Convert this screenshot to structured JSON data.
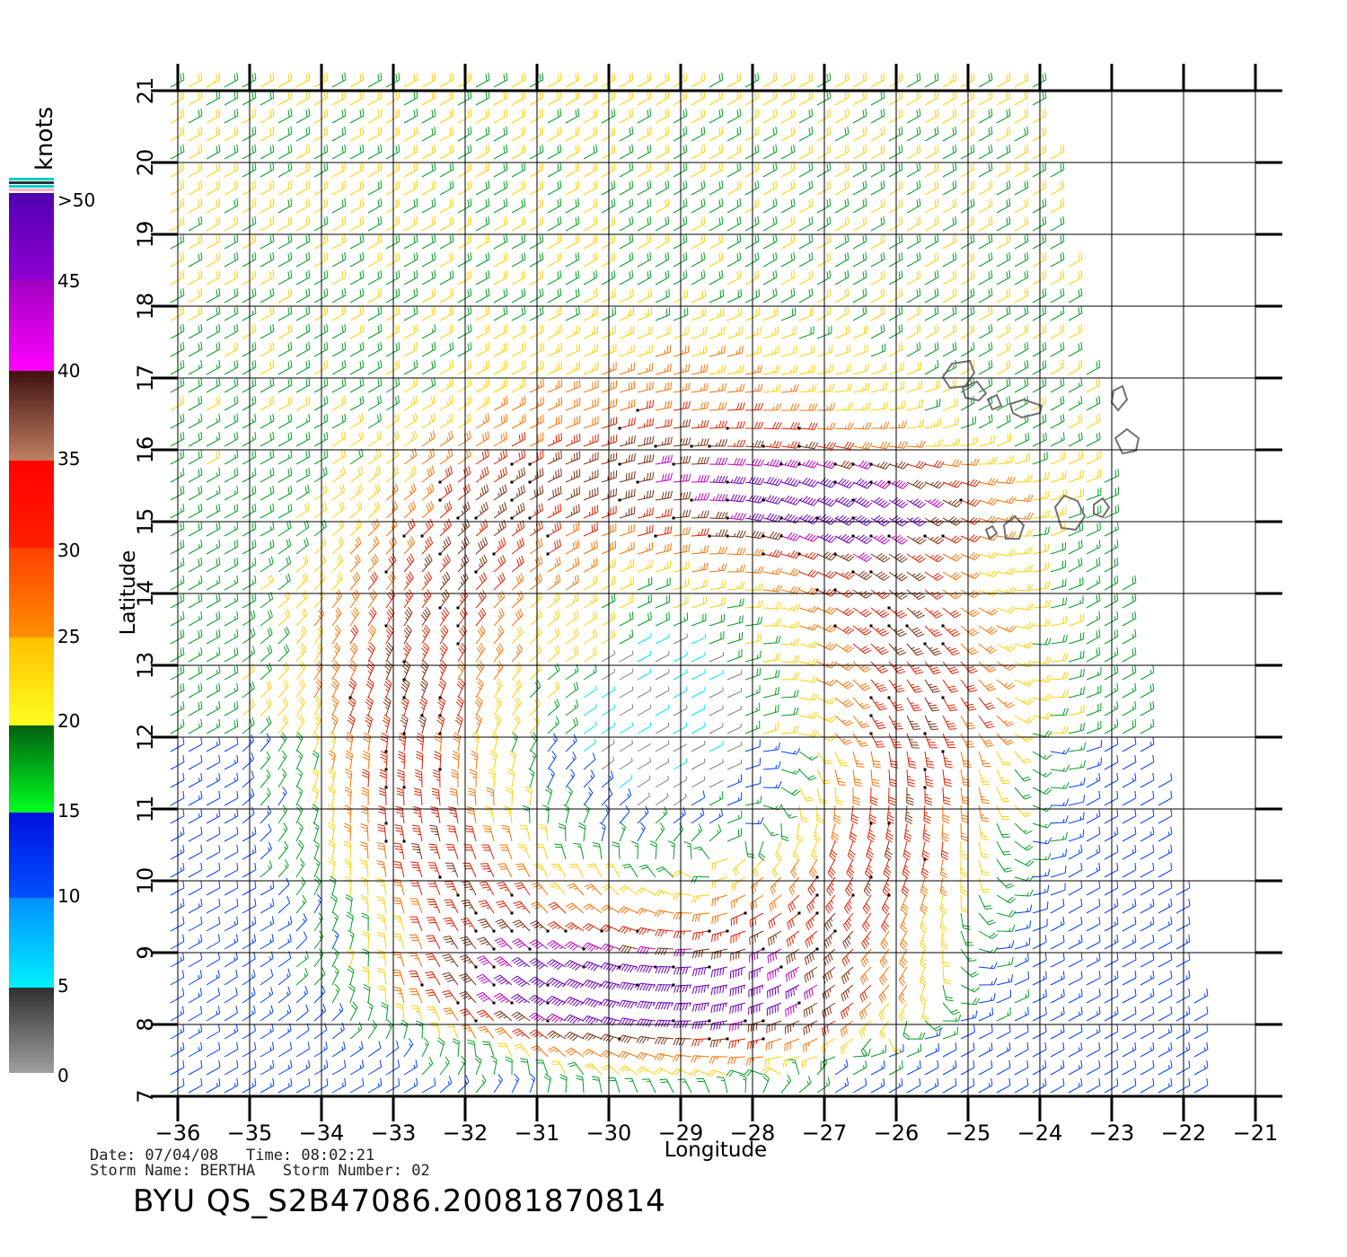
{
  "colors": {
    "grid": "#000000",
    "coast": "#707070",
    "speed_0_5": "#808080",
    "speed_5_10": "#00e5ff",
    "speed_10_15": "#0040ff",
    "speed_15_20": "#00a020",
    "speed_20_25": "#ffd000",
    "speed_25_30": "#ff7000",
    "speed_30_35": "#e02000",
    "speed_35_40": "#7a3010",
    "speed_40_45": "#c000c0",
    "speed_45_50": "#7000c0"
  },
  "map": {
    "xlabel": "Longitude",
    "ylabel": "Latitude",
    "lon_range": [
      -36,
      -21
    ],
    "lat_range": [
      7,
      21
    ],
    "lon_ticks": [
      "−36",
      "−35",
      "−34",
      "−33",
      "−32",
      "−31",
      "−30",
      "−29",
      "−28",
      "−27",
      "−26",
      "−25",
      "−24",
      "−23",
      "−22",
      "−21"
    ],
    "lat_ticks": [
      "7",
      "8",
      "9",
      "10",
      "11",
      "12",
      "13",
      "14",
      "15",
      "16",
      "17",
      "18",
      "19",
      "20",
      "21"
    ]
  },
  "legend": {
    "units": "knots",
    "labels": [
      "0",
      "5",
      "10",
      "15",
      "20",
      "25",
      "30",
      "35",
      "40",
      "45",
      ">50"
    ]
  },
  "info": {
    "date_line": "Date: 07/04/08   Time: 08:02:21",
    "storm_line": "Storm Name: BERTHA   Storm Number: 02",
    "product": "BYU QS_S2B47086.20081870814"
  }
}
